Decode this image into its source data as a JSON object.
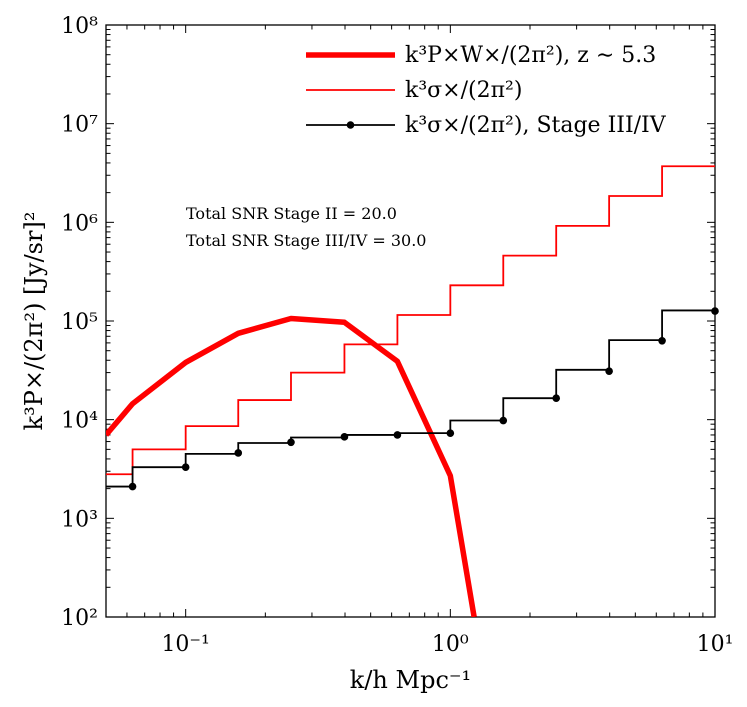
{
  "chart_data": {
    "type": "line",
    "xscale": "log",
    "yscale": "log",
    "xlim": [
      0.05,
      10
    ],
    "ylim": [
      100,
      100000000
    ],
    "xlabel": "k/h Mpc⁻¹",
    "ylabel": "k³P×/(2π²) [Jy/sr]²",
    "x_ticks": [
      {
        "value": 0.1,
        "label": "10⁻¹"
      },
      {
        "value": 1,
        "label": "10⁰"
      },
      {
        "value": 10,
        "label": "10¹"
      }
    ],
    "y_ticks": [
      {
        "value": 100,
        "label": "10²"
      },
      {
        "value": 1000,
        "label": "10³"
      },
      {
        "value": 10000,
        "label": "10⁴"
      },
      {
        "value": 100000,
        "label": "10⁵"
      },
      {
        "value": 1000000,
        "label": "10⁶"
      },
      {
        "value": 10000000,
        "label": "10⁷"
      },
      {
        "value": 100000000,
        "label": "10⁸"
      }
    ],
    "legend_position": "top-right",
    "series": [
      {
        "name": "k³P×W×/(2π²), z ∼ 5.3",
        "style": "thick-line",
        "color": "#ff0000",
        "x": [
          0.05,
          0.063,
          0.1,
          0.158,
          0.25,
          0.398,
          0.631,
          1.0,
          1.23
        ],
        "y": [
          7000,
          14500,
          38000,
          75000,
          106000,
          97000,
          39000,
          2700,
          100
        ]
      },
      {
        "name": "k³σ×/(2π²)",
        "style": "steps",
        "color": "#ff0000",
        "edges": [
          0.05,
          0.063,
          0.1,
          0.158,
          0.25,
          0.398,
          0.631,
          1.0,
          1.585,
          2.512,
          3.981,
          6.31,
          10
        ],
        "values": [
          2800,
          5000,
          8600,
          15800,
          30000,
          58000,
          115000,
          230000,
          460000,
          920000,
          1850000,
          3700000
        ]
      },
      {
        "name": "k³σ×/(2π²), Stage III/IV",
        "style": "steps-with-markers",
        "color": "#000000",
        "edges": [
          0.05,
          0.063,
          0.1,
          0.158,
          0.25,
          0.398,
          0.631,
          1.0,
          1.585,
          2.512,
          3.981,
          6.31,
          10
        ],
        "values": [
          2100,
          3300,
          4500,
          5800,
          6600,
          7000,
          7300,
          9800,
          16500,
          32000,
          64000,
          128000
        ],
        "markers": [
          {
            "x": 0.063,
            "y": 2100
          },
          {
            "x": 0.1,
            "y": 3300
          },
          {
            "x": 0.158,
            "y": 4600
          },
          {
            "x": 0.25,
            "y": 5900
          },
          {
            "x": 0.398,
            "y": 6700
          },
          {
            "x": 0.631,
            "y": 7000
          },
          {
            "x": 1.0,
            "y": 7300
          },
          {
            "x": 1.585,
            "y": 9800
          },
          {
            "x": 2.512,
            "y": 16500
          },
          {
            "x": 3.981,
            "y": 31000
          },
          {
            "x": 6.31,
            "y": 63000
          },
          {
            "x": 10,
            "y": 126000
          }
        ]
      }
    ],
    "annotations": [
      "Total SNR Stage II = 20.0",
      "Total SNR Stage III/IV = 30.0"
    ]
  }
}
